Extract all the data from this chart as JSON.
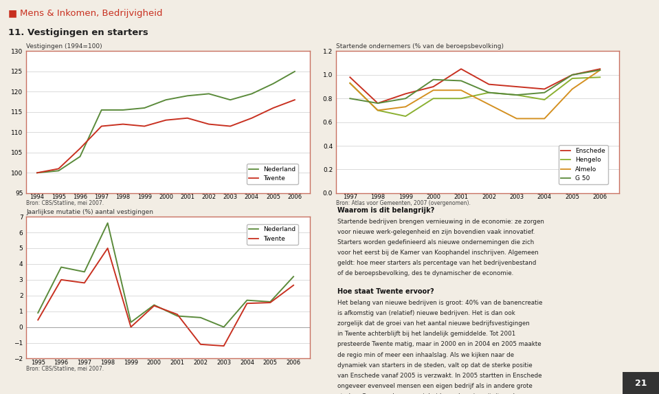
{
  "header_text": "Mens & Inkomen, Bedrijvigheid",
  "section_title": "11. Vestigingen en starters",
  "bg_color": "#f2ede4",
  "panel_border_color": "#c87060",
  "chart1": {
    "title": "Vestigingen (1994=100)",
    "years": [
      1994,
      1995,
      1996,
      1997,
      1998,
      1999,
      2000,
      2001,
      2002,
      2003,
      2004,
      2005,
      2006
    ],
    "nederland": [
      100,
      100.5,
      104,
      115.5,
      115.5,
      116,
      118,
      119,
      119.5,
      118,
      119.5,
      122,
      125
    ],
    "twente": [
      100,
      101,
      106,
      111.5,
      112,
      111.5,
      113,
      113.5,
      112,
      111.5,
      113.5,
      116,
      118
    ],
    "nl_color": "#5a8a3a",
    "tw_color": "#c83020",
    "ylim": [
      95,
      130
    ],
    "yticks": [
      95,
      100,
      105,
      110,
      115,
      120,
      125,
      130
    ],
    "source": "Bron: CBS/Statline, mei 2007."
  },
  "chart2": {
    "title": "Startende ondernemers (% van de beroepsbevolking)",
    "years": [
      1997,
      1998,
      1999,
      2000,
      2001,
      2002,
      2003,
      2004,
      2005,
      2006
    ],
    "enschede": [
      0.98,
      0.76,
      0.84,
      0.9,
      1.05,
      0.92,
      0.9,
      0.88,
      1.0,
      1.05
    ],
    "hengelo": [
      0.93,
      0.7,
      0.65,
      0.8,
      0.8,
      0.85,
      0.83,
      0.79,
      0.97,
      0.98
    ],
    "almelo": [
      0.93,
      0.7,
      0.73,
      0.87,
      0.87,
      0.75,
      0.63,
      0.63,
      0.88,
      1.04
    ],
    "g50": [
      0.8,
      0.76,
      0.8,
      0.96,
      0.95,
      0.85,
      0.83,
      0.85,
      1.0,
      1.04
    ],
    "enschede_color": "#c83020",
    "hengelo_color": "#8ab030",
    "almelo_color": "#d49020",
    "g50_color": "#5a8a3a",
    "ylim": [
      0.0,
      1.2
    ],
    "yticks": [
      0.0,
      0.2,
      0.4,
      0.6,
      0.8,
      1.0,
      1.2
    ],
    "source": "Bron: Atlas voor Gemeenten, 2007 (overgenomen)."
  },
  "chart3": {
    "title": "Jaarlijkse mutatie (%) aantal vestigingen",
    "years": [
      1995,
      1996,
      1997,
      1998,
      1999,
      2000,
      2001,
      2002,
      2003,
      2004,
      2005,
      2006
    ],
    "nederland": [
      0.9,
      3.8,
      3.5,
      6.6,
      0.3,
      1.4,
      0.7,
      0.6,
      0.0,
      1.7,
      1.6,
      3.2
    ],
    "twente": [
      0.45,
      3.0,
      2.8,
      5.0,
      0.0,
      1.35,
      0.8,
      -1.1,
      -1.2,
      1.5,
      1.55,
      2.65
    ],
    "nl_color": "#5a8a3a",
    "tw_color": "#c83020",
    "ylim": [
      -2,
      7
    ],
    "yticks": [
      -2,
      -1,
      0,
      1,
      2,
      3,
      4,
      5,
      6,
      7
    ],
    "source": "Bron: CBS/Statline, mei 2007."
  },
  "text_waarom_title": "Waarom is dit belangrijk?",
  "text_waarom_body": "Startende bedrijven brengen vernieuwing in de economie: ze zorgen voor nieuwe werk-gelegenheid en zijn bovendien vaak innovatief. Starters worden gedefinieerd als nieuwe ondernemingen die zich voor het eerst bij de Kamer van Koophandel inschrijven. Algemeen geldt: hoe meer starters als percentage van het bedrijvenbestand of de beroepsbevolking, des te dynamischer de economie.",
  "text_hoe_title": "Hoe staat Twente ervoor?",
  "text_hoe_body": "Het belang van nieuwe bedrijven is groot: 40% van de banencreatie is afkomstig van (relatief) nieuwe bedrijven. Het is dan ook zorgelijk dat de groei van het aantal nieuwe bedrijfsvestigingen in Twente achterblijft bij het landelijk gemiddelde. Tot 2001 presteerde Twente matig, maar in 2000 en in 2004 en 2005 maakte de regio min of meer een inhaalslag. Als we kijken naar de dynamiek van starters in de steden, valt op dat de sterke positie van Enschede vanaf 2005 is verzwakt. In 2005 startten in Enschede ongeveer evenveel mensen een eigen bedrijf als in andere grote steden. Gegeven de aanwezigheid van de universiteit en de hogeschool met hun actieve startersondersteuning is dat zorgelijk. Hengelo blijft het in vergelijking met de vijftig grootste gemeenten van het land (G-50) relatief slecht doen, maar Almelo heeft zich sterk verbeterd.",
  "page_number": "21"
}
